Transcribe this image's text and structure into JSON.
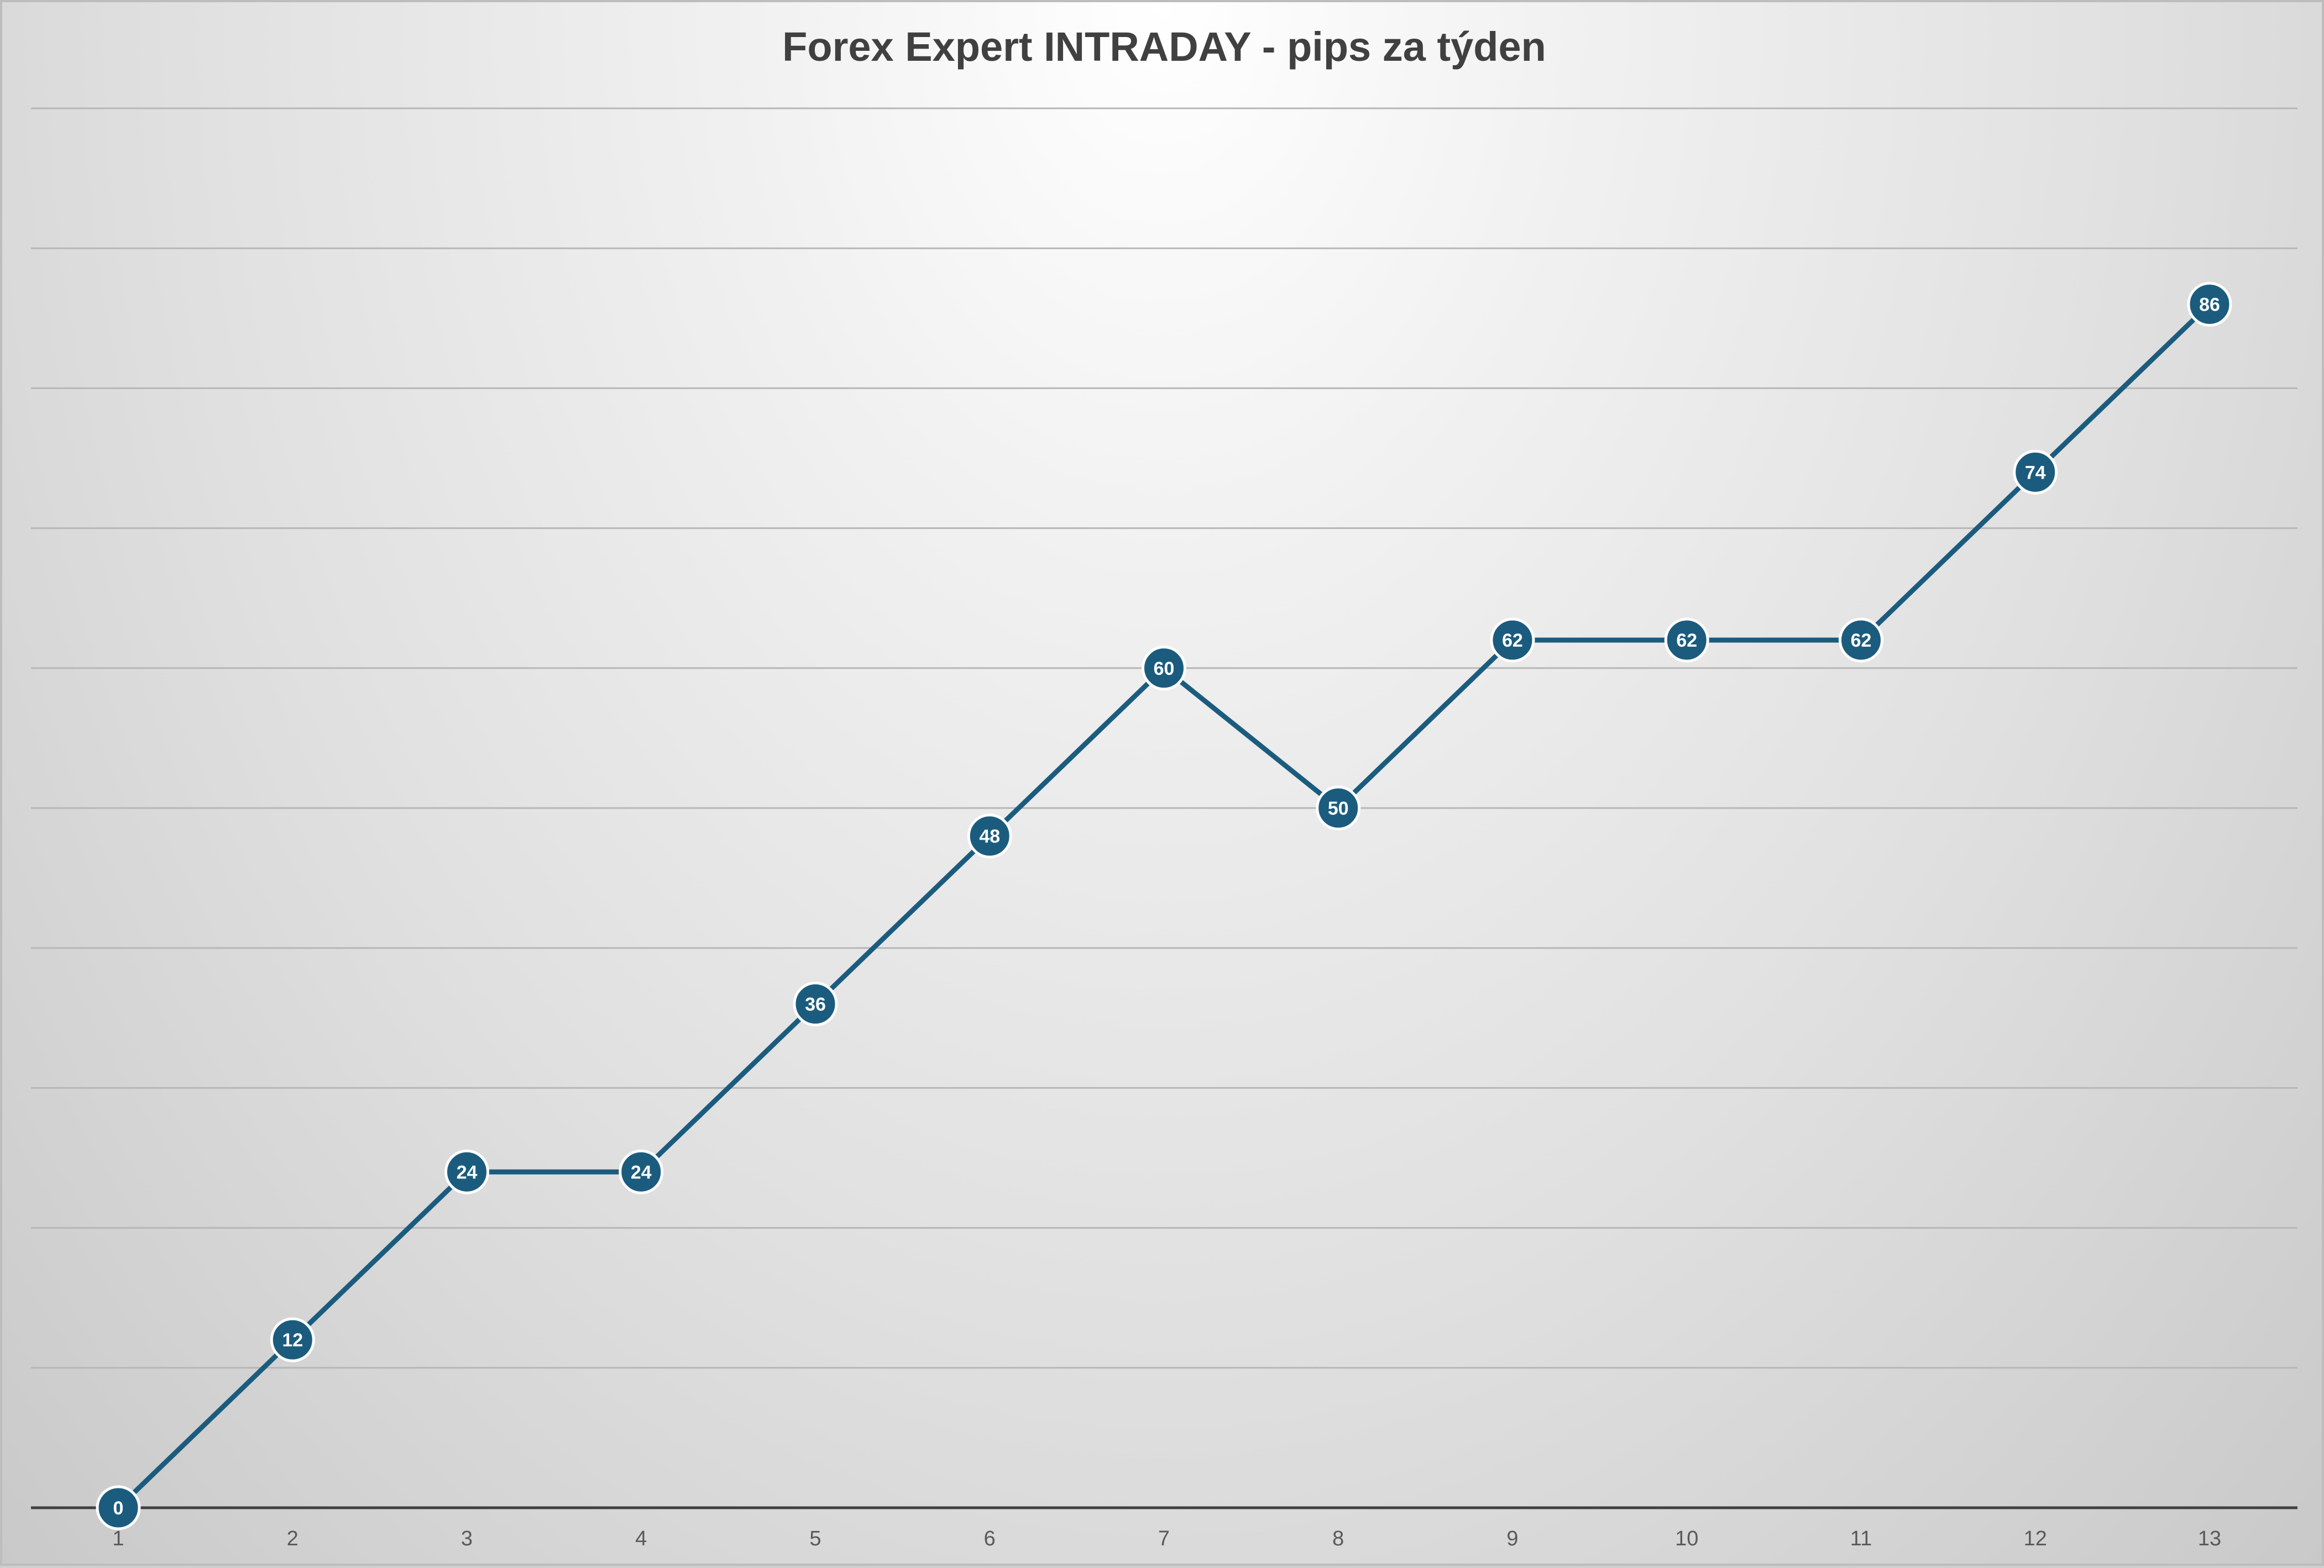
{
  "chart_data": {
    "type": "line",
    "title": "Forex Expert INTRADAY - pips za týden",
    "xlabel": "",
    "ylabel": "",
    "categories": [
      "1",
      "2",
      "3",
      "4",
      "5",
      "6",
      "7",
      "8",
      "9",
      "10",
      "11",
      "12",
      "13"
    ],
    "series": [
      {
        "values": [
          0,
          12,
          24,
          24,
          36,
          48,
          60,
          50,
          62,
          62,
          62,
          74,
          86
        ]
      }
    ],
    "ylim": [
      0,
      100
    ],
    "ytick_step": 10,
    "y_axis_labels_shown": false,
    "data_labels_shown": true,
    "grid": true,
    "legend": "none",
    "colors": {
      "line": "#1b5c7e",
      "marker": "#1b5c7e",
      "marker_border": "#ffffff",
      "data_label_text": "#ffffff",
      "gridline": "#b7b7b7",
      "axis_line": "#404040",
      "title_text": "#404040",
      "tick_text": "#595959"
    }
  }
}
